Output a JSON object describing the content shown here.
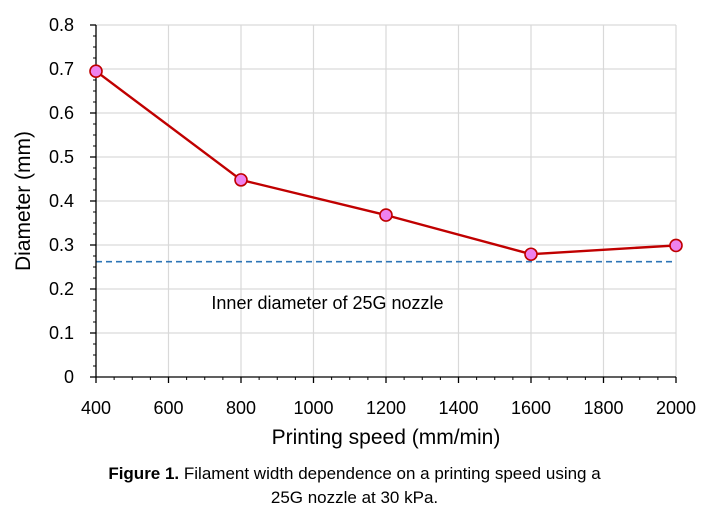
{
  "chart_data": {
    "type": "line",
    "x": [
      400,
      800,
      1200,
      1600,
      2000
    ],
    "series": [
      {
        "values": [
          0.695,
          0.448,
          0.368,
          0.279,
          0.299
        ]
      }
    ],
    "xlabel": "Printing speed (mm/min)",
    "ylabel": "Diameter (mm)",
    "xlim": [
      400,
      2000
    ],
    "ylim": [
      0,
      0.8
    ],
    "x_ticks": [
      400,
      600,
      800,
      1000,
      1200,
      1400,
      1600,
      1800,
      2000
    ],
    "x_tick_labels": [
      "400",
      "600",
      "800",
      "1000",
      "1200",
      "1400",
      "1600",
      "1800",
      "2000"
    ],
    "y_ticks": [
      0,
      0.1,
      0.2,
      0.3,
      0.4,
      0.5,
      0.6,
      0.7,
      0.8
    ],
    "y_tick_labels": [
      "0",
      "0.1",
      "0.2",
      "0.3",
      "0.4",
      "0.5",
      "0.6",
      "0.7",
      "0.8"
    ],
    "grid": true,
    "reference_line": {
      "y": 0.262,
      "style": "dashed",
      "label": "Inner diameter of 25G nozzle"
    }
  },
  "caption": {
    "label": "Figure 1.",
    "text_line1": " Filament width dependence on a printing speed using a",
    "text_line2": "25G nozzle at 30 kPa."
  },
  "colors": {
    "series_line": "#c00000",
    "marker_fill": "#ee82ee",
    "marker_edge": "#c00000",
    "reference_line": "#2e75b6",
    "grid": "#d9d9d9",
    "axis": "#000000"
  }
}
